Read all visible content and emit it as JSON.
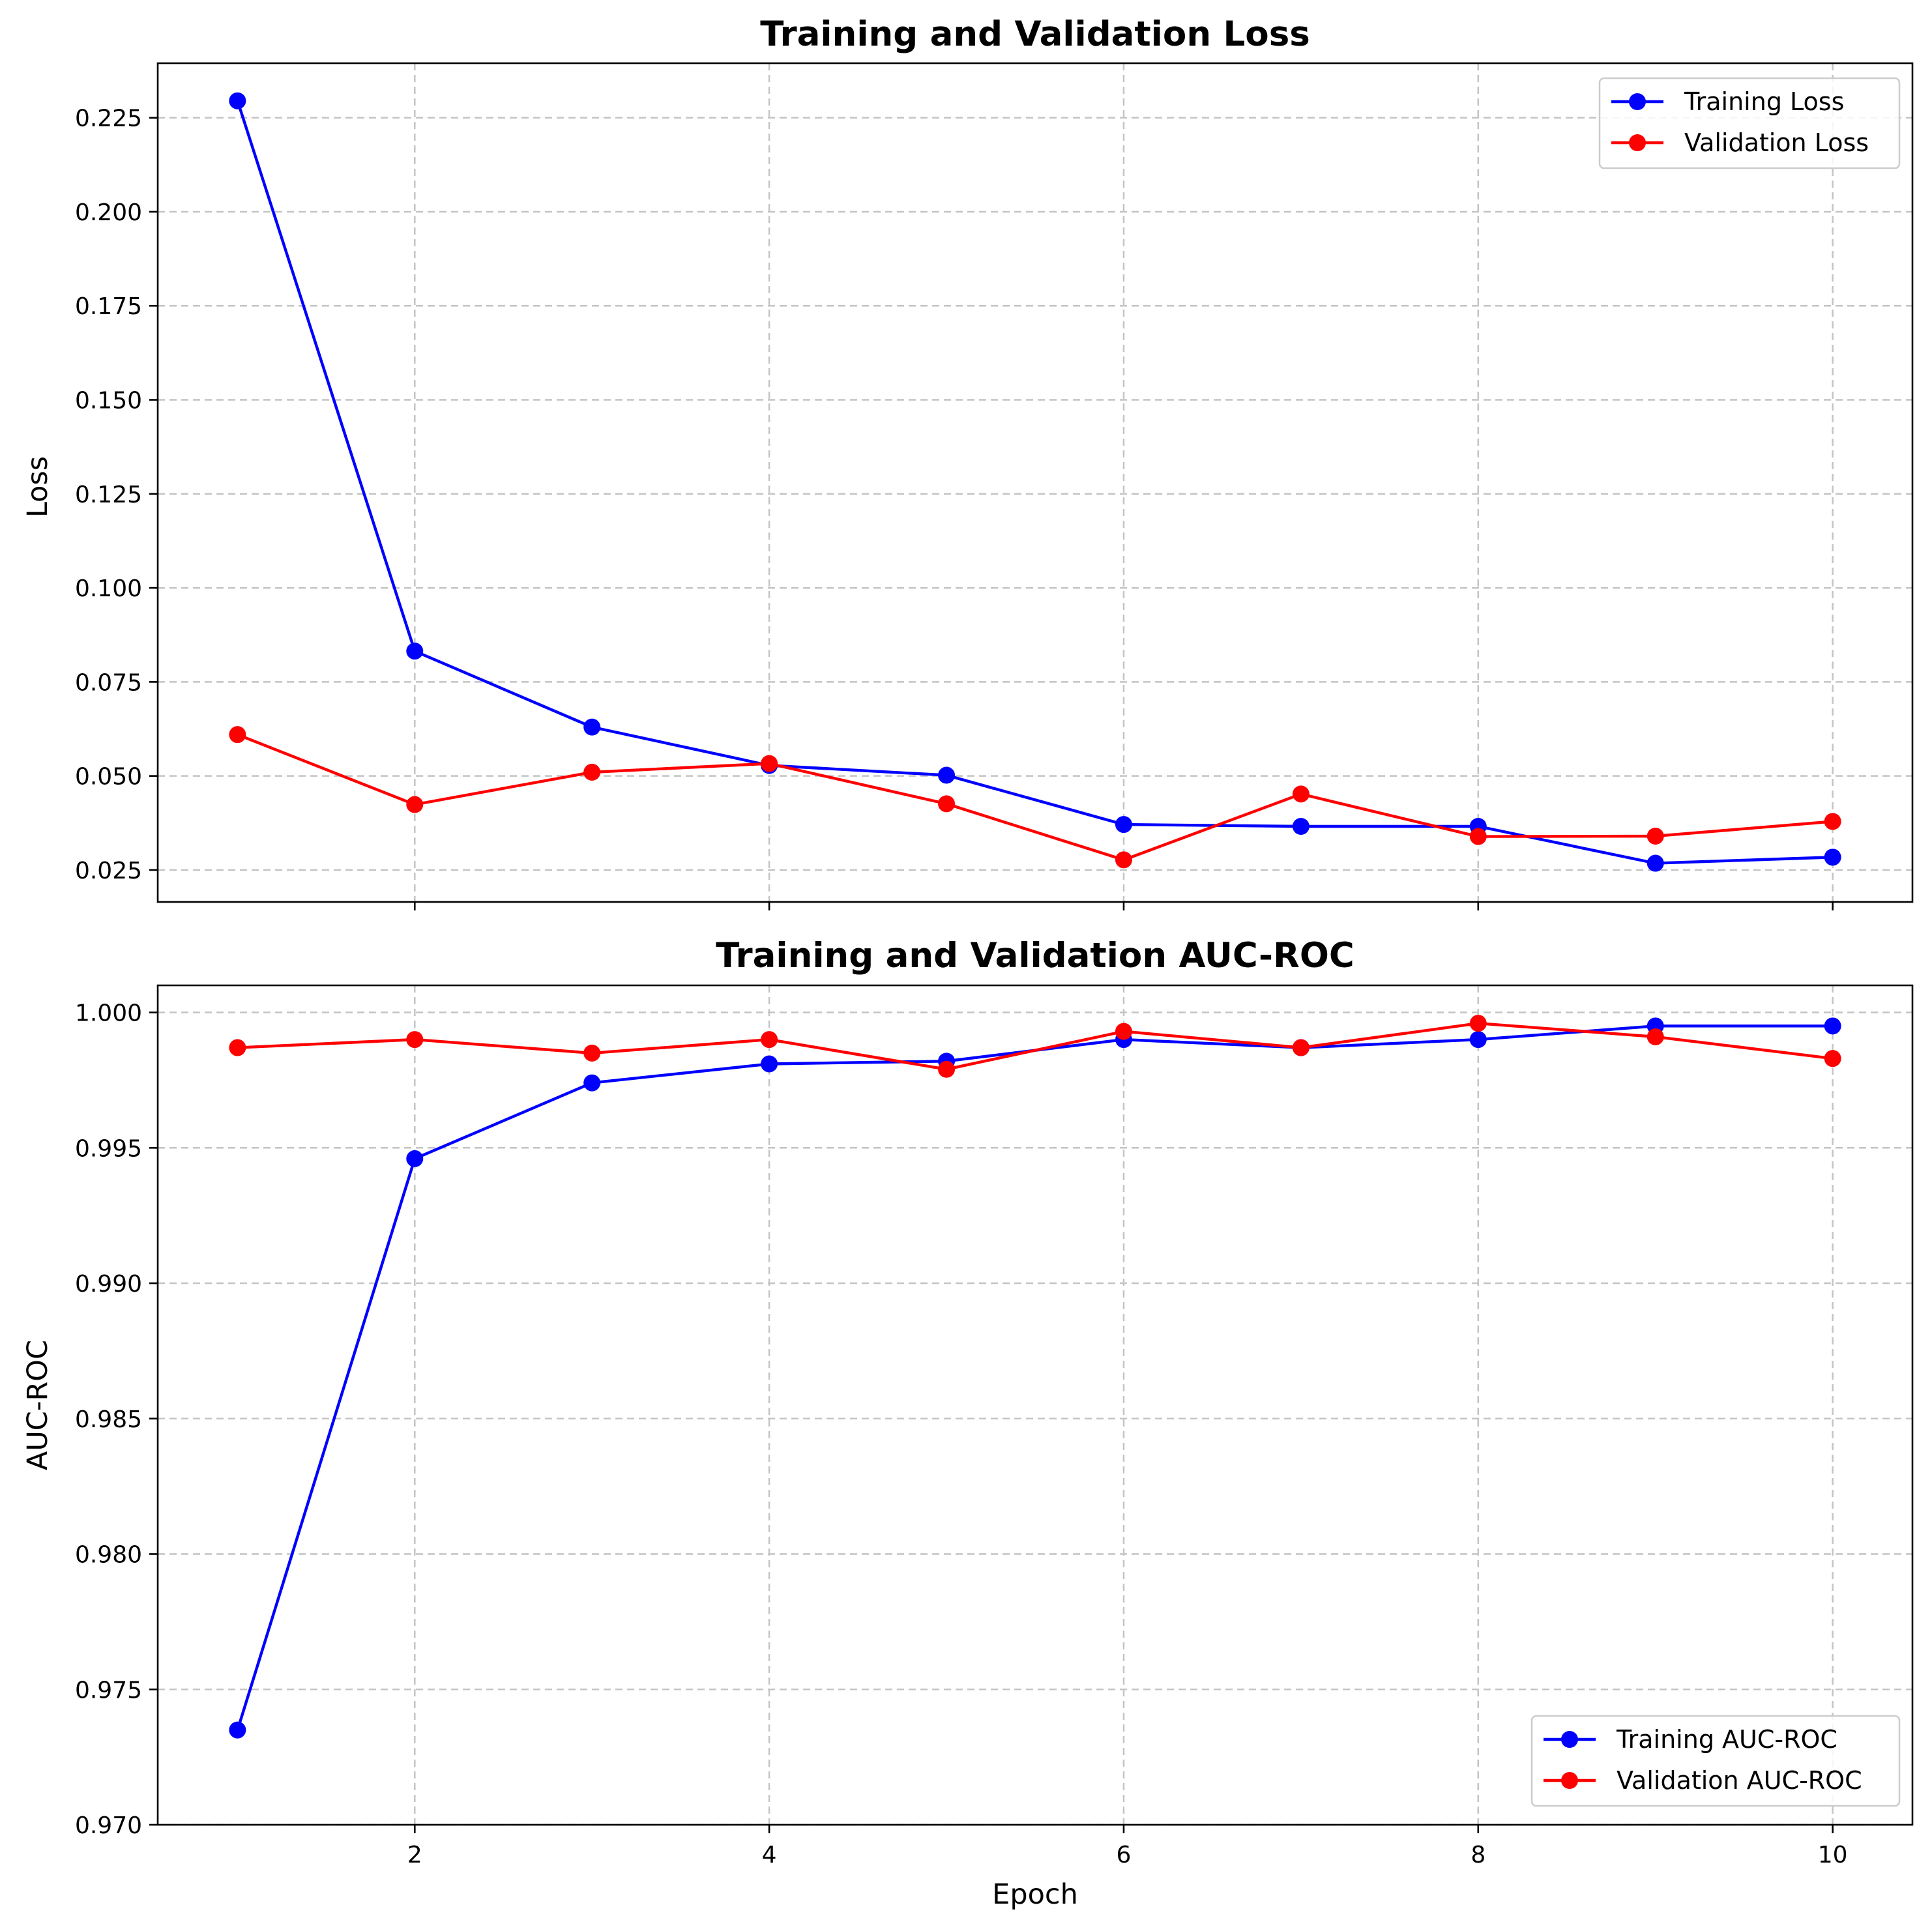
{
  "chart_data": [
    {
      "type": "line",
      "title": "Training and Validation Loss",
      "xlabel": "",
      "ylabel": "Loss",
      "xlim": [
        0.55,
        10.45
      ],
      "ylim": [
        0.0165,
        0.2395
      ],
      "xticks": [
        2,
        4,
        6,
        8,
        10
      ],
      "xtick_labels": [
        "",
        "",
        "",
        "",
        ""
      ],
      "yticks": [
        0.025,
        0.05,
        0.075,
        0.1,
        0.125,
        0.15,
        0.175,
        0.2,
        0.225
      ],
      "ytick_labels": [
        "0.025",
        "0.050",
        "0.075",
        "0.100",
        "0.125",
        "0.150",
        "0.175",
        "0.200",
        "0.225"
      ],
      "grid": true,
      "legend_position": "top-right",
      "x": [
        1,
        2,
        3,
        4,
        5,
        6,
        7,
        8,
        9,
        10
      ],
      "series": [
        {
          "name": "Training Loss",
          "color": "#0000ff",
          "marker": "circle",
          "values": [
            0.2295,
            0.0832,
            0.063,
            0.0528,
            0.0502,
            0.0371,
            0.0366,
            0.0366,
            0.0268,
            0.0284
          ]
        },
        {
          "name": "Validation Loss",
          "color": "#ff0000",
          "marker": "circle",
          "values": [
            0.061,
            0.0424,
            0.051,
            0.0533,
            0.0426,
            0.0277,
            0.0452,
            0.0339,
            0.034,
            0.0379
          ]
        }
      ]
    },
    {
      "type": "line",
      "title": "Training and Validation AUC-ROC",
      "xlabel": "Epoch",
      "ylabel": "AUC-ROC",
      "xlim": [
        0.55,
        10.45
      ],
      "ylim": [
        0.97,
        1.001
      ],
      "xticks": [
        2,
        4,
        6,
        8,
        10
      ],
      "xtick_labels": [
        "2",
        "4",
        "6",
        "8",
        "10"
      ],
      "yticks": [
        0.97,
        0.975,
        0.98,
        0.985,
        0.99,
        0.995,
        1.0
      ],
      "ytick_labels": [
        "0.970",
        "0.975",
        "0.980",
        "0.985",
        "0.990",
        "0.995",
        "1.000"
      ],
      "grid": true,
      "legend_position": "bottom-right",
      "x": [
        1,
        2,
        3,
        4,
        5,
        6,
        7,
        8,
        9,
        10
      ],
      "series": [
        {
          "name": "Training AUC-ROC",
          "color": "#0000ff",
          "marker": "circle",
          "values": [
            0.9735,
            0.9946,
            0.9974,
            0.9981,
            0.9982,
            0.999,
            0.9987,
            0.999,
            0.9995,
            0.9995
          ]
        },
        {
          "name": "Validation AUC-ROC",
          "color": "#ff0000",
          "marker": "circle",
          "values": [
            0.9987,
            0.999,
            0.9985,
            0.999,
            0.9979,
            0.9993,
            0.9987,
            0.9996,
            0.9991,
            0.9983
          ]
        }
      ]
    }
  ]
}
